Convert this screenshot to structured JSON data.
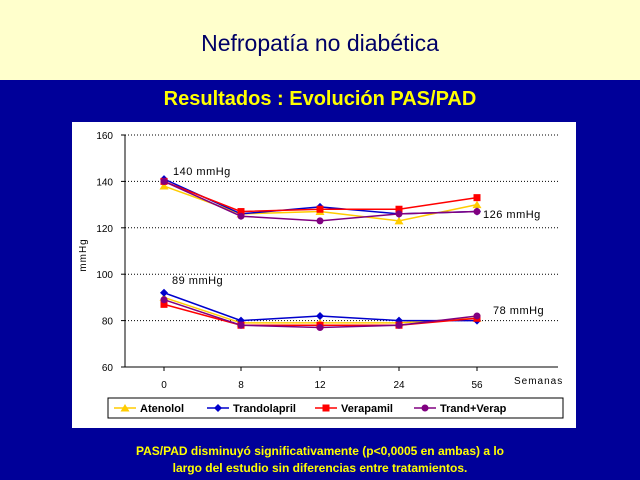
{
  "slide": {
    "title": "Nefropatía no diabética",
    "subtitle": "Resultados : Evolución PAS/PAD",
    "footer_line1": "PAS/PAD disminuyó significativamente (p<0,0005 en ambas) a lo",
    "footer_line2": "largo del estudio sin diferencias entre tratamientos."
  },
  "colors": {
    "background": "#000099",
    "title_band": "#FFFFCC",
    "highlight_text": "#FFFF00"
  },
  "chart_data": {
    "type": "line",
    "categories": [
      "0",
      "8",
      "12",
      "24",
      "56"
    ],
    "xlabel": "Semanas",
    "ylabel": "mmHg",
    "ylim": [
      60,
      160
    ],
    "yticks": [
      60,
      80,
      100,
      120,
      140,
      160
    ],
    "grid": "horizontal dotted",
    "legend_position": "bottom",
    "series": [
      {
        "name": "Atenolol",
        "color": "#FFCC00",
        "marker": "triangle",
        "pas": [
          138,
          126,
          127,
          123,
          130
        ],
        "pad": [
          90,
          79,
          79,
          79,
          81
        ]
      },
      {
        "name": "Trandolapril",
        "color": "#0000CC",
        "marker": "diamond",
        "pas": [
          141,
          126,
          129,
          126,
          127
        ],
        "pad": [
          92,
          80,
          82,
          80,
          80
        ]
      },
      {
        "name": "Verapamil",
        "color": "#FF0000",
        "marker": "square",
        "pas": [
          140,
          127,
          128,
          128,
          133
        ],
        "pad": [
          87,
          78,
          78,
          78,
          81
        ]
      },
      {
        "name": "Trand+Verap",
        "color": "#800080",
        "marker": "circle",
        "pas": [
          140,
          125,
          123,
          126,
          127
        ],
        "pad": [
          89,
          78,
          77,
          78,
          82
        ]
      }
    ],
    "annotations": [
      {
        "text": "140 mmHg",
        "anchor": "PAS baseline"
      },
      {
        "text": "126 mmHg",
        "anchor": "PAS final"
      },
      {
        "text": "89 mmHg",
        "anchor": "PAD baseline"
      },
      {
        "text": "78 mmHg",
        "anchor": "PAD final"
      }
    ]
  }
}
